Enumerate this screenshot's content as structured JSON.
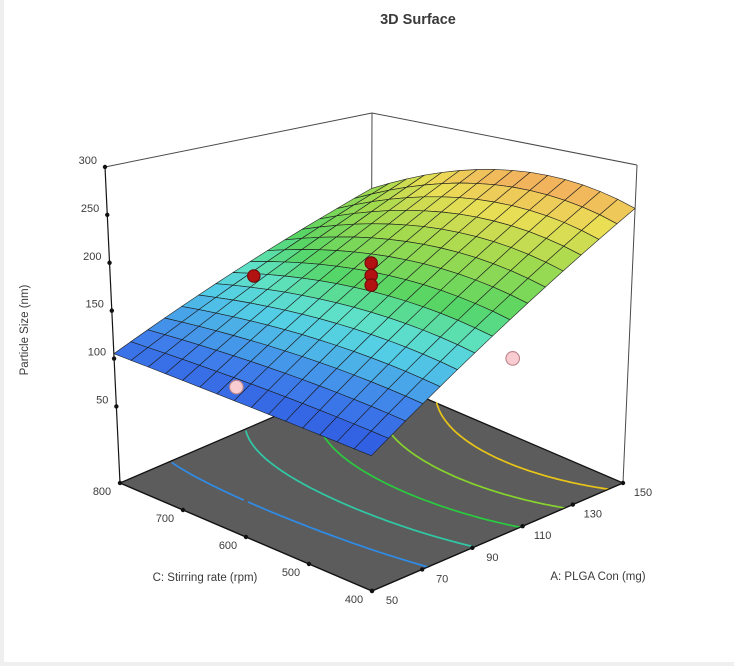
{
  "window": {
    "background": "#ffffff",
    "edge_color": "#efefef"
  },
  "chart_data": {
    "type": "surface3d",
    "title": "3D Surface",
    "x_axis": {
      "label": "A: PLGA Con (mg)",
      "min": 50,
      "max": 150,
      "ticks": [
        50,
        70,
        90,
        110,
        130,
        150
      ]
    },
    "y_axis": {
      "label": "C: Stirring rate (rpm)",
      "min": 400,
      "max": 800,
      "ticks": [
        400,
        500,
        600,
        700,
        800
      ]
    },
    "z_axis": {
      "label": "Particle Size (nm)",
      "ticks": [
        50,
        100,
        150,
        200,
        250,
        300
      ]
    },
    "surface": {
      "grid_divisions": 15,
      "corner_values": {
        "a_min_c_min": 90,
        "a_max_c_min": 255,
        "a_min_c_max": 105,
        "a_max_c_max": 205
      },
      "curvature": {
        "along_a_front": -10,
        "along_a_back": 0,
        "along_c_left": 0,
        "along_c_right": 140
      },
      "color_range": [
        85,
        270
      ],
      "colormap": [
        [
          0.0,
          "#2b50dd"
        ],
        [
          0.16,
          "#3e7cea"
        ],
        [
          0.32,
          "#53cde6"
        ],
        [
          0.4,
          "#5ee2c4"
        ],
        [
          0.5,
          "#55d565"
        ],
        [
          0.68,
          "#a2da4e"
        ],
        [
          0.84,
          "#ebde55"
        ],
        [
          1.0,
          "#f4a660"
        ]
      ],
      "mesh_line_color": "#1b1b1b"
    },
    "floor": {
      "fill": "#5c5c5c",
      "outline": "#141414",
      "contour_levels": [
        125,
        155,
        185,
        215,
        245
      ],
      "contour_colors": [
        "#2f8ce8",
        "#30c9a6",
        "#29cc3f",
        "#86d42c",
        "#e9c518"
      ]
    },
    "design_points": [
      {
        "factor_a": 60,
        "factor_c": 650,
        "size_nm": 95,
        "position": "below_surface"
      },
      {
        "factor_a": 130,
        "factor_c": 500,
        "size_nm": 95,
        "position": "below_surface"
      },
      {
        "factor_a": 80,
        "factor_c": 700,
        "size_nm": 182,
        "position": "above_surface"
      },
      {
        "factor_a": 100,
        "factor_c": 600,
        "size_nm": 199,
        "position": "above_surface"
      },
      {
        "factor_a": 100,
        "factor_c": 600,
        "size_nm": 186,
        "position": "above_surface"
      },
      {
        "factor_a": 100,
        "factor_c": 600,
        "size_nm": 176,
        "position": "above_surface"
      }
    ],
    "point_style": {
      "above": {
        "fill": "#b21211",
        "stroke": "#700909",
        "radius": 6.2
      },
      "below": {
        "fill": "#f8ccd0",
        "stroke": "#bb848a",
        "radius": 6.8
      }
    },
    "frame_color": "#4a4a4a",
    "axis_line_color": "#141414"
  }
}
